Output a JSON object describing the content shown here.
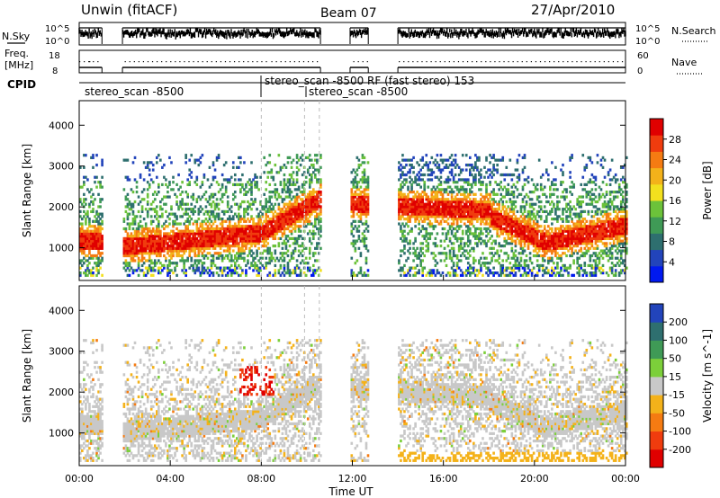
{
  "header": {
    "station": "Unwin (fitACF)",
    "beam": "Beam 07",
    "date": "27/Apr/2010"
  },
  "noise_panel": {
    "left_label": "N.Sky",
    "right_label": "N.Search",
    "left_ticks": [
      "10^5",
      "10^0"
    ],
    "right_ticks": [
      "10^5",
      "10^0"
    ]
  },
  "freq_panel": {
    "left_label_1": "Freq.",
    "left_label_2": "[MHz]",
    "right_label": "Nave",
    "left_ticks": [
      "18",
      "8"
    ],
    "right_ticks": [
      "60",
      "0"
    ]
  },
  "cpid": {
    "label": "CPID",
    "segments": [
      {
        "name": "stereo_scan -8500",
        "start_h": 0.0
      },
      {
        "name": "stereo_scan -8500 RF (fast stereo) 153",
        "start_h": 8.0
      },
      {
        "name": "stereo_scan -8500",
        "start_h": 10.0
      }
    ]
  },
  "chart_data": [
    {
      "type": "heatmap",
      "name": "power",
      "ylabel": "Slant Range [km]",
      "yticks": [
        1000,
        2000,
        3000,
        4000
      ],
      "ylim": [
        200,
        4600
      ],
      "xlim": [
        0,
        24
      ],
      "colorbar": {
        "label": "Power [dB]",
        "range": [
          0,
          32
        ],
        "ticks": [
          "28",
          "24",
          "20",
          "16",
          "12",
          "8",
          "4"
        ],
        "colors": [
          "#0019f0",
          "#2244bb",
          "#2e6f6f",
          "#3f9a56",
          "#6cc23a",
          "#f3e01e",
          "#f4b21a",
          "#f57b12",
          "#f03c0e",
          "#e00000"
        ]
      },
      "data_gaps_h": [
        [
          1.0,
          1.9
        ],
        [
          10.6,
          11.9
        ],
        [
          12.7,
          14.0
        ]
      ]
    },
    {
      "type": "heatmap",
      "name": "velocity",
      "ylabel": "Slant Range [km]",
      "yticks": [
        1000,
        2000,
        3000,
        4000
      ],
      "ylim": [
        200,
        4600
      ],
      "xlim": [
        0,
        24
      ],
      "xlabel": "Time UT",
      "xticks": [
        "00:00",
        "04:00",
        "08:00",
        "12:00",
        "16:00",
        "20:00",
        "00:00"
      ],
      "colorbar": {
        "label": "Velocity [m s^-1]",
        "ticks": [
          "200",
          "100",
          "50",
          "15",
          "-15",
          "-50",
          "-100",
          "-200"
        ],
        "colors": [
          "#2244bb",
          "#2e6f6f",
          "#3f9a56",
          "#7ccf3a",
          "#c8c8c8",
          "#f4b21a",
          "#f57b12",
          "#f03c0e",
          "#e00000"
        ]
      },
      "data_gaps_h": [
        [
          1.0,
          1.9
        ],
        [
          10.6,
          11.9
        ],
        [
          12.7,
          14.0
        ]
      ]
    }
  ]
}
